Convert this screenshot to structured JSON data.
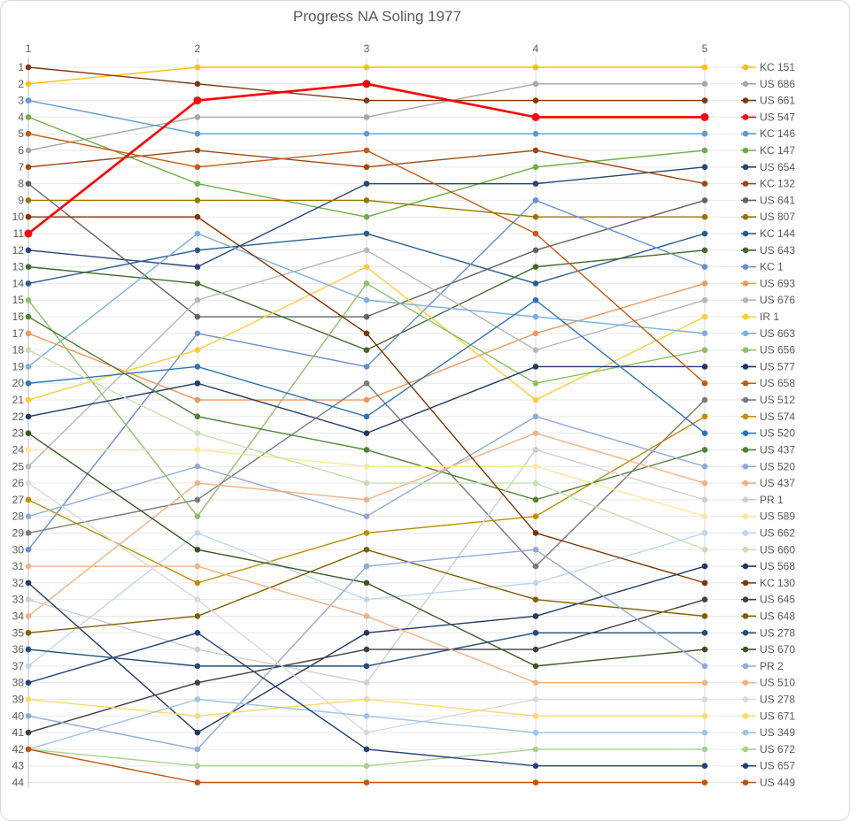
{
  "title": "Progress NA Soling 1977",
  "x_axis": {
    "labels": [
      "1",
      "2",
      "3",
      "4",
      "5"
    ]
  },
  "y_axis": {
    "min": 1,
    "max": 44
  },
  "legend_position": "right",
  "text_color": "#595959",
  "grid_color": "#e7e7e7",
  "axis_line_color": "#bfbfbf",
  "highlight_series": "US 547",
  "chart_data": {
    "type": "line",
    "title": "Progress NA Soling 1977",
    "x": [
      1,
      2,
      3,
      4,
      5
    ],
    "xlabel": "",
    "ylabel": "",
    "ylim": [
      1,
      44
    ],
    "grid": true,
    "legend_position": "right",
    "series": [
      {
        "name": "KC 151",
        "color": "#FFC000",
        "values": [
          2,
          1,
          1,
          1,
          1
        ]
      },
      {
        "name": "US 686",
        "color": "#A6A6A6",
        "values": [
          6,
          4,
          4,
          2,
          2
        ]
      },
      {
        "name": "US 661",
        "color": "#7B3A10",
        "values": [
          1,
          2,
          3,
          3,
          3
        ]
      },
      {
        "name": "US 547",
        "color": "#FF0000",
        "values": [
          11,
          3,
          2,
          4,
          4
        ]
      },
      {
        "name": "KC 146",
        "color": "#5B9BD5",
        "values": [
          3,
          5,
          5,
          5,
          5
        ]
      },
      {
        "name": "KC 147",
        "color": "#70AD47",
        "values": [
          4,
          8,
          10,
          7,
          6
        ]
      },
      {
        "name": "US 654",
        "color": "#264478",
        "values": [
          12,
          13,
          8,
          8,
          7
        ]
      },
      {
        "name": "KC 132",
        "color": "#9E480E",
        "values": [
          7,
          6,
          7,
          6,
          8
        ]
      },
      {
        "name": "US 641",
        "color": "#636363",
        "values": [
          8,
          16,
          16,
          12,
          9
        ]
      },
      {
        "name": "US 807",
        "color": "#997300",
        "values": [
          9,
          9,
          9,
          10,
          10
        ]
      },
      {
        "name": "KC 144",
        "color": "#255E91",
        "values": [
          14,
          12,
          11,
          14,
          11
        ]
      },
      {
        "name": "US 643",
        "color": "#43682B",
        "values": [
          13,
          14,
          18,
          13,
          12
        ]
      },
      {
        "name": "KC 1",
        "color": "#698ED0",
        "values": [
          30,
          17,
          19,
          9,
          13
        ]
      },
      {
        "name": "US 693",
        "color": "#F1975A",
        "values": [
          17,
          21,
          21,
          17,
          14
        ]
      },
      {
        "name": "US 676",
        "color": "#B7B7B7",
        "values": [
          25,
          15,
          12,
          18,
          15
        ]
      },
      {
        "name": "IR 1",
        "color": "#FFCD33",
        "values": [
          21,
          18,
          13,
          21,
          16
        ]
      },
      {
        "name": "US 663",
        "color": "#7CAFDD",
        "values": [
          19,
          11,
          15,
          16,
          17
        ]
      },
      {
        "name": "US 656",
        "color": "#8CC168",
        "values": [
          15,
          28,
          14,
          20,
          18
        ]
      },
      {
        "name": "US 577",
        "color": "#1F3864",
        "values": [
          22,
          20,
          23,
          19,
          19
        ]
      },
      {
        "name": "US 658",
        "color": "#C55A11",
        "values": [
          5,
          7,
          6,
          11,
          20
        ]
      },
      {
        "name": "US 512",
        "color": "#7B7B7B",
        "values": [
          29,
          27,
          20,
          31,
          21
        ]
      },
      {
        "name": "US 574",
        "color": "#BF8F00",
        "values": [
          27,
          32,
          29,
          28,
          22
        ]
      },
      {
        "name": "US 520",
        "color": "#2E75B6",
        "values": [
          20,
          19,
          22,
          15,
          23
        ]
      },
      {
        "name": "US 437",
        "color": "#538135",
        "values": [
          16,
          22,
          24,
          27,
          24
        ]
      },
      {
        "name": "US 520",
        "color": "#8FAADC",
        "values": [
          28,
          25,
          28,
          22,
          25
        ]
      },
      {
        "name": "US 437",
        "color": "#F4B183",
        "values": [
          34,
          26,
          27,
          23,
          26
        ]
      },
      {
        "name": "PR 1",
        "color": "#CFCFCF",
        "values": [
          33,
          36,
          38,
          24,
          27
        ]
      },
      {
        "name": "US 589",
        "color": "#FFE699",
        "values": [
          24,
          24,
          25,
          25,
          28
        ]
      },
      {
        "name": "US 662",
        "color": "#BDD7EE",
        "values": [
          37,
          29,
          33,
          32,
          29
        ]
      },
      {
        "name": "US 660",
        "color": "#C5E0B4",
        "values": [
          18,
          23,
          26,
          26,
          30
        ]
      },
      {
        "name": "US 568",
        "color": "#203864",
        "values": [
          32,
          41,
          35,
          34,
          31
        ]
      },
      {
        "name": "KC 130",
        "color": "#7F3300",
        "values": [
          10,
          10,
          17,
          29,
          32
        ]
      },
      {
        "name": "US 645",
        "color": "#404040",
        "values": [
          41,
          38,
          36,
          36,
          33
        ]
      },
      {
        "name": "US 648",
        "color": "#7F6000",
        "values": [
          35,
          34,
          30,
          33,
          34
        ]
      },
      {
        "name": "US 278",
        "color": "#1F4E79",
        "values": [
          36,
          37,
          37,
          35,
          35
        ]
      },
      {
        "name": "US 670",
        "color": "#375623",
        "values": [
          23,
          30,
          32,
          37,
          36
        ]
      },
      {
        "name": "PR 2",
        "color": "#8FAADC",
        "values": [
          40,
          42,
          31,
          30,
          37
        ]
      },
      {
        "name": "US 510",
        "color": "#F4B183",
        "values": [
          31,
          31,
          34,
          38,
          38
        ]
      },
      {
        "name": "US 278",
        "color": "#D9D9D9",
        "values": [
          26,
          33,
          41,
          39,
          39
        ]
      },
      {
        "name": "US 671",
        "color": "#FFD966",
        "values": [
          39,
          40,
          39,
          40,
          40
        ]
      },
      {
        "name": "US 349",
        "color": "#9DC3E6",
        "values": [
          42,
          39,
          40,
          41,
          41
        ]
      },
      {
        "name": "US 672",
        "color": "#A9D18E",
        "values": [
          42,
          43,
          43,
          42,
          42
        ]
      },
      {
        "name": "US 657",
        "color": "#24417A",
        "values": [
          38,
          35,
          42,
          43,
          43
        ]
      },
      {
        "name": "US 449",
        "color": "#C1540F",
        "values": [
          42,
          44,
          44,
          44,
          44
        ]
      }
    ]
  }
}
